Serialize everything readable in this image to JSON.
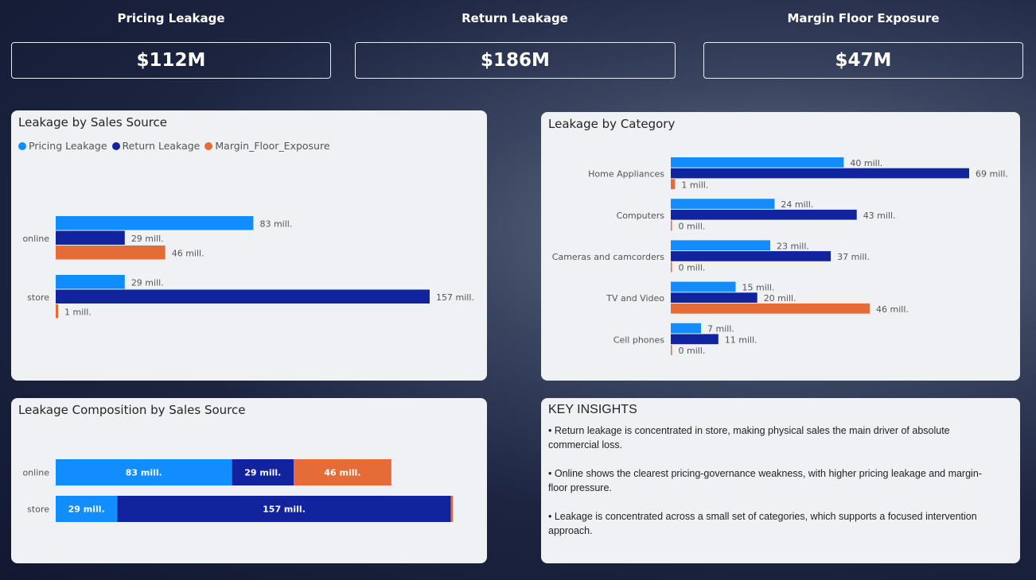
{
  "kpis": [
    {
      "title": "Pricing Leakage",
      "value": "$112M"
    },
    {
      "title": "Return Leakage",
      "value": "$186M"
    },
    {
      "title": "Margin Floor Exposure",
      "value": "$47M"
    }
  ],
  "colors": {
    "pricing": "#118dff",
    "return": "#12239e",
    "margin": "#e66c37"
  },
  "chart_data": [
    {
      "type": "bar",
      "orientation": "horizontal",
      "title": "Leakage by Sales Source",
      "legend": [
        "Pricing Leakage",
        "Return Leakage",
        "Margin_Floor_Exposure"
      ],
      "legend_position": "top-left",
      "categories": [
        "online",
        "store"
      ],
      "series": [
        {
          "name": "Pricing Leakage",
          "values": [
            83,
            29
          ],
          "labels": [
            "83 mill.",
            "29 mill."
          ]
        },
        {
          "name": "Return Leakage",
          "values": [
            29,
            157
          ],
          "labels": [
            "29 mill.",
            "157 mill."
          ]
        },
        {
          "name": "Margin_Floor_Exposure",
          "values": [
            46,
            1
          ],
          "labels": [
            "46 mill.",
            "1 mill."
          ]
        }
      ],
      "unit": "mill.",
      "grid": false
    },
    {
      "type": "bar",
      "orientation": "horizontal",
      "title": "Leakage by Category",
      "categories": [
        "Home Appliances",
        "Computers",
        "Cameras and camcorders",
        "TV and Video",
        "Cell phones"
      ],
      "series": [
        {
          "name": "Pricing Leakage",
          "values": [
            40,
            24,
            23,
            15,
            7
          ],
          "labels": [
            "40 mill.",
            "24 mill.",
            "23 mill.",
            "15 mill.",
            "7 mill."
          ]
        },
        {
          "name": "Return Leakage",
          "values": [
            69,
            43,
            37,
            20,
            11
          ],
          "labels": [
            "69 mill.",
            "43 mill.",
            "37 mill.",
            "20 mill.",
            "11 mill."
          ]
        },
        {
          "name": "Margin_Floor_Exposure",
          "values": [
            1,
            0,
            0,
            46,
            0
          ],
          "labels": [
            "1 mill.",
            "0 mill.",
            "0 mill.",
            "46 mill.",
            "0 mill."
          ]
        }
      ],
      "unit": "mill.",
      "grid": false
    },
    {
      "type": "bar",
      "orientation": "horizontal",
      "stacked": true,
      "title": "Leakage Composition by Sales Source",
      "categories": [
        "online",
        "store"
      ],
      "series": [
        {
          "name": "Pricing Leakage",
          "values": [
            83,
            29
          ],
          "labels": [
            "83 mill.",
            "29 mill."
          ]
        },
        {
          "name": "Return Leakage",
          "values": [
            29,
            157
          ],
          "labels": [
            "29 mill.",
            "157 mill."
          ]
        },
        {
          "name": "Margin_Floor_Exposure",
          "values": [
            46,
            1
          ],
          "labels": [
            "46 mill.",
            ""
          ]
        }
      ],
      "unit": "mill.",
      "grid": false
    }
  ],
  "insights": {
    "title": "KEY INSIGHTS",
    "items": [
      "• Return leakage is concentrated in store, making physical sales the main driver of absolute commercial loss.",
      "• Online shows the clearest pricing-governance weakness, with higher pricing leakage and margin-floor pressure.",
      "• Leakage is concentrated across a small set of categories, which supports a focused intervention approach."
    ]
  }
}
